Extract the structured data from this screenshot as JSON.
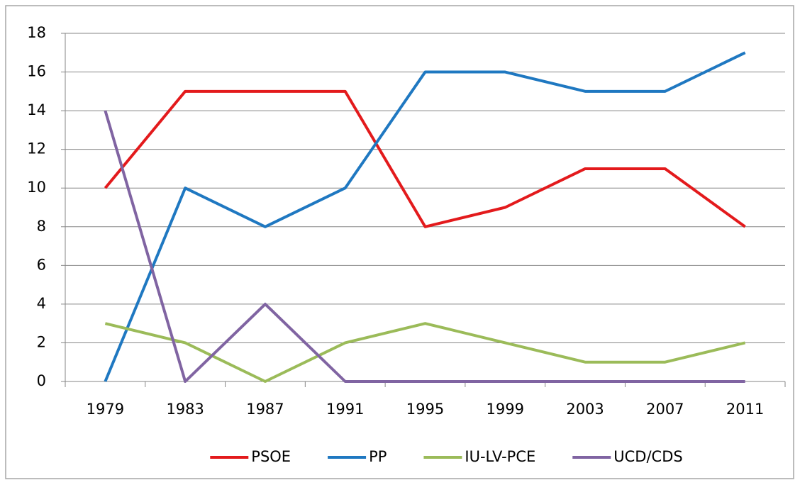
{
  "chart_data": {
    "type": "line",
    "categories": [
      "1979",
      "1983",
      "1987",
      "1991",
      "1995",
      "1999",
      "2003",
      "2007",
      "2011"
    ],
    "series": [
      {
        "name": "PSOE",
        "color": "#e31a1c",
        "values": [
          10,
          15,
          15,
          15,
          8,
          9,
          11,
          11,
          8
        ]
      },
      {
        "name": "PP",
        "color": "#1f78c1",
        "values": [
          0,
          10,
          8,
          10,
          16,
          16,
          15,
          15,
          17
        ]
      },
      {
        "name": "IU-LV-PCE",
        "color": "#9bbb59",
        "values": [
          3,
          2,
          0,
          2,
          3,
          2,
          1,
          1,
          2
        ]
      },
      {
        "name": "UCD/CDS",
        "color": "#8064a2",
        "values": [
          14,
          0,
          4,
          0,
          0,
          0,
          0,
          0,
          0
        ]
      }
    ],
    "ylim": [
      0,
      18
    ],
    "yticks": [
      0,
      2,
      4,
      6,
      8,
      10,
      12,
      14,
      16,
      18
    ],
    "grid": true,
    "legend": "bottom"
  }
}
